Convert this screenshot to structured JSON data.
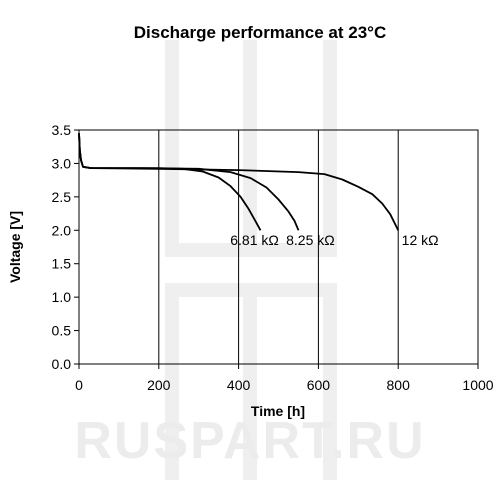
{
  "watermark": "RUSPART.RU",
  "chart_data": {
    "type": "line",
    "title": "Discharge performance at 23°C",
    "xlabel": "Time [h]",
    "ylabel": "Voltage [V]",
    "xlim": [
      0,
      1000
    ],
    "ylim": [
      0.0,
      3.5
    ],
    "xticks": [
      0,
      200,
      400,
      600,
      800,
      1000
    ],
    "yticks": [
      0.0,
      0.5,
      1.0,
      1.5,
      2.0,
      2.5,
      3.0,
      3.5
    ],
    "xtick_labels": [
      "0",
      "200",
      "400",
      "600",
      "800",
      "1000"
    ],
    "ytick_labels": [
      "0.0",
      "0.5",
      "1.0",
      "1.5",
      "2.0",
      "2.5",
      "3.0",
      "3.5"
    ],
    "grid": "vertical",
    "series": [
      {
        "name": "6.81 kΩ",
        "points": [
          [
            0,
            3.45
          ],
          [
            2,
            3.2
          ],
          [
            5,
            3.05
          ],
          [
            10,
            2.95
          ],
          [
            30,
            2.93
          ],
          [
            100,
            2.93
          ],
          [
            200,
            2.93
          ],
          [
            260,
            2.92
          ],
          [
            310,
            2.88
          ],
          [
            350,
            2.79
          ],
          [
            380,
            2.66
          ],
          [
            405,
            2.5
          ],
          [
            425,
            2.32
          ],
          [
            440,
            2.16
          ],
          [
            455,
            2.0
          ]
        ]
      },
      {
        "name": "8.25 kΩ",
        "points": [
          [
            0,
            3.45
          ],
          [
            2,
            3.2
          ],
          [
            5,
            3.05
          ],
          [
            10,
            2.95
          ],
          [
            30,
            2.93
          ],
          [
            150,
            2.93
          ],
          [
            300,
            2.92
          ],
          [
            380,
            2.87
          ],
          [
            430,
            2.78
          ],
          [
            470,
            2.64
          ],
          [
            500,
            2.46
          ],
          [
            525,
            2.28
          ],
          [
            540,
            2.14
          ],
          [
            550,
            2.0
          ]
        ]
      },
      {
        "name": "12 kΩ",
        "points": [
          [
            0,
            3.45
          ],
          [
            2,
            3.2
          ],
          [
            5,
            3.05
          ],
          [
            10,
            2.95
          ],
          [
            30,
            2.93
          ],
          [
            200,
            2.92
          ],
          [
            400,
            2.9
          ],
          [
            550,
            2.87
          ],
          [
            615,
            2.84
          ],
          [
            660,
            2.76
          ],
          [
            700,
            2.65
          ],
          [
            735,
            2.54
          ],
          [
            760,
            2.4
          ],
          [
            780,
            2.24
          ],
          [
            800,
            2.0
          ]
        ]
      }
    ],
    "labels": [
      {
        "text": "6.81 kΩ",
        "x": 440,
        "y": 1.78
      },
      {
        "text": "8.25 kΩ",
        "x": 580,
        "y": 1.78
      },
      {
        "text": "12 kΩ",
        "x": 855,
        "y": 1.78
      }
    ]
  }
}
